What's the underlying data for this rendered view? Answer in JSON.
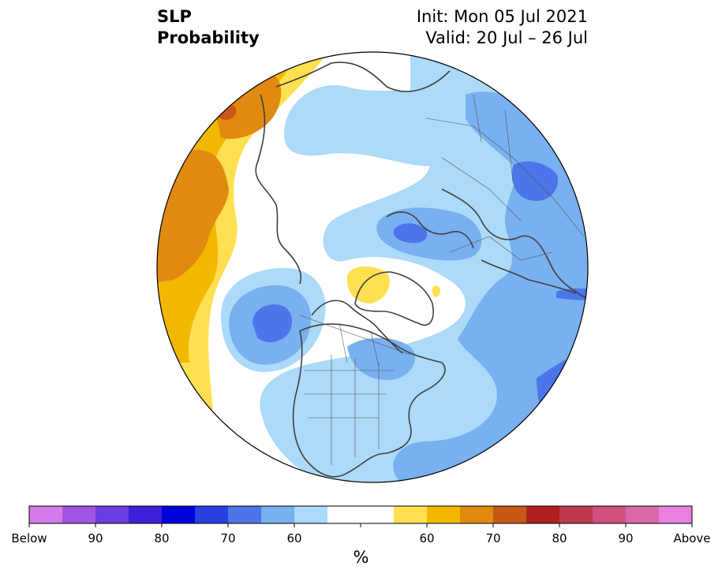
{
  "header": {
    "title_line1": "SLP",
    "title_line2": "Probability",
    "init_line": "Init: Mon 05 Jul 2021",
    "valid_line": "Valid: 20 Jul – 26 Jul"
  },
  "colorbar": {
    "unit": "%",
    "below_colors": [
      "#d57ae8",
      "#9f55e2",
      "#6b3ce0",
      "#3f1fd8",
      "#0000d8",
      "#2a3fe0",
      "#4b75e8",
      "#78b0f0",
      "#acdaf8"
    ],
    "neutral_color": "#ffffff",
    "above_colors": [
      "#ffe050",
      "#f2b800",
      "#e08a10",
      "#c85818",
      "#b02020",
      "#c03850",
      "#d05080",
      "#d868a8",
      "#e880e0"
    ],
    "labels": [
      {
        "text": "Below",
        "boundary": 0
      },
      {
        "text": "90",
        "boundary": 2
      },
      {
        "text": "80",
        "boundary": 4
      },
      {
        "text": "70",
        "boundary": 6
      },
      {
        "text": "60",
        "boundary": 8
      },
      {
        "text": "60",
        "boundary": 12
      },
      {
        "text": "70",
        "boundary": 14
      },
      {
        "text": "80",
        "boundary": 16
      },
      {
        "text": "90",
        "boundary": 18
      },
      {
        "text": "Above",
        "boundary": 20
      }
    ]
  },
  "map": {
    "projection": "north-polar-stereographic",
    "coastline_color": "#404040",
    "border_color": "#555555"
  }
}
